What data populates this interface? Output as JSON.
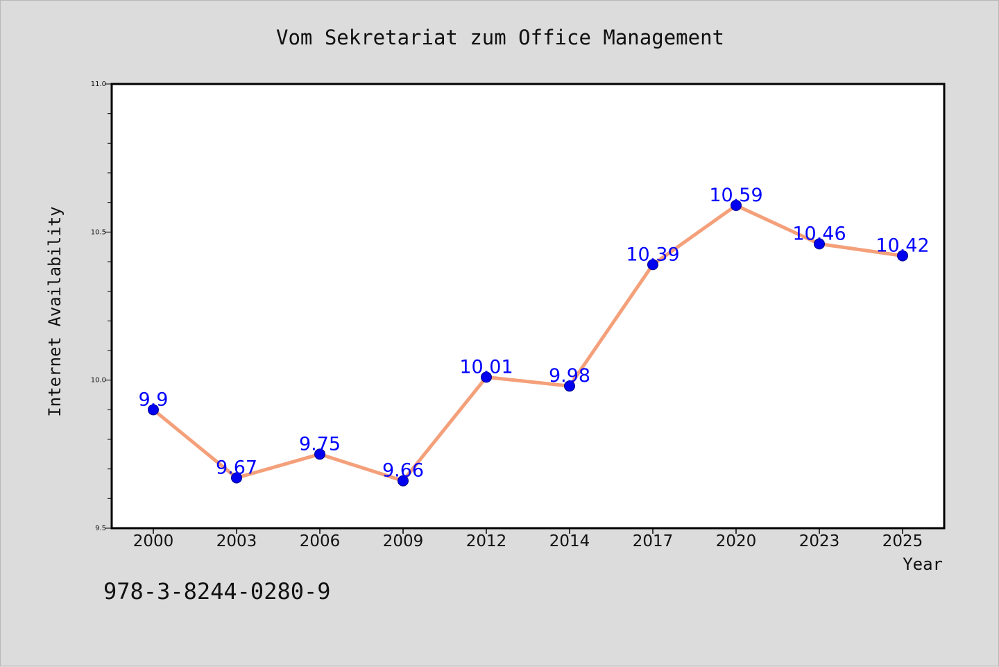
{
  "chart_data": {
    "type": "line",
    "title": "Vom Sekretariat zum Office Management",
    "xlabel": "Year",
    "ylabel": "Internet Availability",
    "categories": [
      "2000",
      "2003",
      "2006",
      "2009",
      "2012",
      "2014",
      "2017",
      "2020",
      "2023",
      "2025"
    ],
    "series": [
      {
        "values": [
          9.9,
          9.67,
          9.75,
          9.66,
          10.01,
          9.98,
          10.39,
          10.59,
          10.46,
          10.42
        ],
        "data_labels": [
          "9.9",
          "9.67",
          "9.75",
          "9.66",
          "10.01",
          "9.98",
          "10.39",
          "10.59",
          "10.46",
          "10.42"
        ],
        "line_color": "#f4a07a",
        "marker_color": "#0000ee",
        "label_color": "#0000ff"
      }
    ],
    "ylim": [
      9.5,
      11.0
    ],
    "y_tick_labels": [
      "9.5",
      "10.0",
      "10.5",
      "11.0"
    ],
    "grid": false,
    "legend": "none"
  },
  "footer": {
    "isbn": "978-3-8244-0280-9"
  },
  "colors": {
    "background": "#dcdcdc",
    "plot_background": "#ffffff",
    "axes": "#000000"
  }
}
